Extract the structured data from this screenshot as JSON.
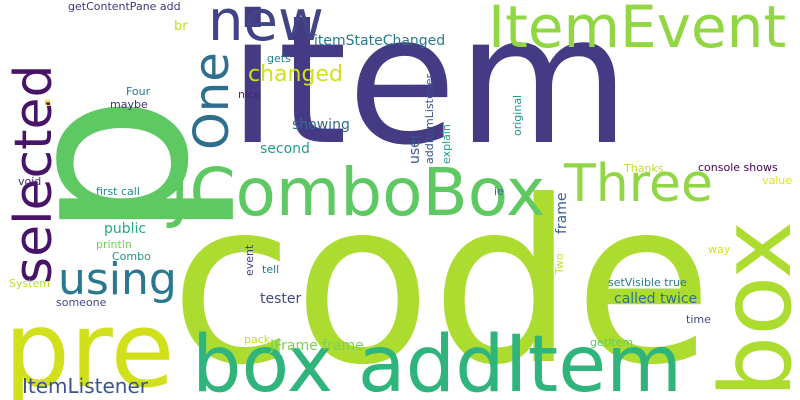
{
  "words": [
    {
      "text": "p",
      "color": "#5ec962"
    },
    {
      "text": "item",
      "color": "#443b84"
    },
    {
      "text": "code",
      "color": "#addc30"
    },
    {
      "text": "box",
      "color": "#addc30"
    },
    {
      "text": "pre",
      "color": "#d0e11c"
    },
    {
      "text": "box addItem",
      "color": "#2fb47c"
    },
    {
      "text": "JComboBox",
      "color": "#5ec962"
    },
    {
      "text": "ItemEvent",
      "color": "#90d743"
    },
    {
      "text": "selected",
      "color": "#481467"
    },
    {
      "text": "new",
      "color": "#414487"
    },
    {
      "text": "One",
      "color": "#2e6e8e"
    },
    {
      "text": "Three",
      "color": "#90d743"
    },
    {
      "text": "using",
      "color": "#2a788e"
    },
    {
      "text": "changed",
      "color": "#d0e11c"
    },
    {
      "text": "ItemListener",
      "color": "#3b528b"
    },
    {
      "text": "itemStateChanged",
      "color": "#29798e"
    },
    {
      "text": "showing",
      "color": "#31688e"
    },
    {
      "text": "second",
      "color": "#1f9e89"
    },
    {
      "text": "public",
      "color": "#22a884"
    },
    {
      "text": "tester",
      "color": "#3e4a89"
    },
    {
      "text": "called twice",
      "color": "#2c728e"
    },
    {
      "text": "JFrame frame",
      "color": "#7ad151"
    },
    {
      "text": "frame",
      "color": "#355f8d"
    },
    {
      "text": "getContentPane add",
      "color": "#46327e"
    },
    {
      "text": "br",
      "color": "#bddf26"
    },
    {
      "text": "gets",
      "color": "#287c8e"
    },
    {
      "text": "nice",
      "color": "#482576"
    },
    {
      "text": "maybe",
      "color": "#472d7b"
    },
    {
      "text": "Four",
      "color": "#2a788e"
    },
    {
      "text": "first call",
      "color": "#23888e"
    },
    {
      "text": "void",
      "color": "#482878"
    },
    {
      "text": "println",
      "color": "#73d056"
    },
    {
      "text": "Combo",
      "color": "#1f968b"
    },
    {
      "text": "System",
      "color": "#b5de2b"
    },
    {
      "text": "someone",
      "color": "#3e4a89"
    },
    {
      "text": "pack",
      "color": "#c8e020"
    },
    {
      "text": "e",
      "color": "#fde725"
    },
    {
      "text": "event",
      "color": "#433e85"
    },
    {
      "text": "tell",
      "color": "#2c728e"
    },
    {
      "text": "user",
      "color": "#38598c"
    },
    {
      "text": "addItemListener",
      "color": "#3b528b"
    },
    {
      "text": "explain",
      "color": "#1fa088"
    },
    {
      "text": "original",
      "color": "#1f948c"
    },
    {
      "text": "ie",
      "color": "#33638d"
    },
    {
      "text": "Thanks",
      "color": "#bddf26"
    },
    {
      "text": "console shows",
      "color": "#440154"
    },
    {
      "text": "value",
      "color": "#dde318"
    },
    {
      "text": "way",
      "color": "#d8e219"
    },
    {
      "text": "Two",
      "color": "#cae11f"
    },
    {
      "text": "setVisible true",
      "color": "#2a788e"
    },
    {
      "text": "time",
      "color": "#3e4a89"
    },
    {
      "text": "getItem",
      "color": "#5ec962"
    }
  ]
}
